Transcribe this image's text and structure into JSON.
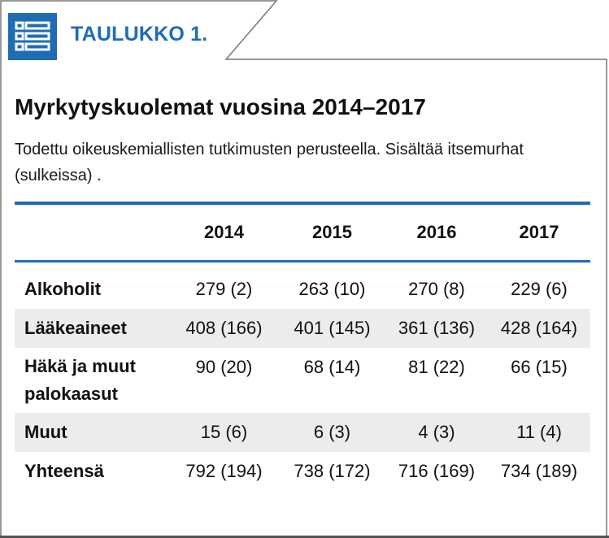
{
  "label": "TAULUKKO 1.",
  "title": "Myrkytyskuolemat vuosina 2014–2017",
  "subtitle": "Todettu oikeuskemiallisten tutkimusten perusteella. Sisältää itsemurhat (sulkeissa) .",
  "icon": "table-list-icon",
  "colors": {
    "accent": "#1f6cb4",
    "shade": "#ececec"
  },
  "table": {
    "headers": [
      "",
      "2014",
      "2015",
      "2016",
      "2017"
    ],
    "rows": [
      {
        "label": "Alkoholit",
        "values": [
          "279 (2)",
          "263 (10)",
          "270 (8)",
          "229 (6)"
        ]
      },
      {
        "label": "Lääkeaineet",
        "values": [
          "408 (166)",
          "401 (145)",
          "361 (136)",
          "428 (164)"
        ]
      },
      {
        "label": "Häkä ja muut palokaasut",
        "values": [
          "90 (20)",
          "68 (14)",
          "81 (22)",
          "66 (15)"
        ]
      },
      {
        "label": "Muut",
        "values": [
          "15 (6)",
          "6 (3)",
          "4 (3)",
          "11 (4)"
        ]
      },
      {
        "label": "Yhteensä",
        "values": [
          "792 (194)",
          "738 (172)",
          "716 (169)",
          "734 (189)"
        ]
      }
    ]
  }
}
